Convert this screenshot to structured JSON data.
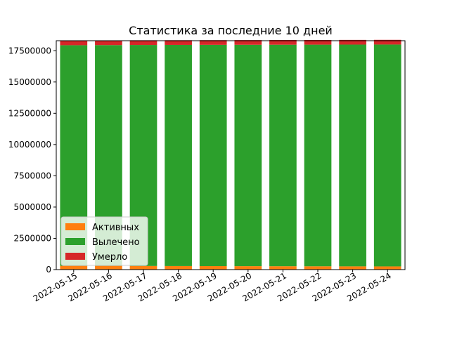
{
  "chart_data": {
    "type": "bar",
    "stacked": true,
    "title": "Статистика за последние 10 дней",
    "xlabel": "",
    "ylabel": "",
    "ylim": [
      0,
      18300000
    ],
    "yticks": [
      0,
      2500000,
      5000000,
      7500000,
      10000000,
      12500000,
      15000000,
      17500000
    ],
    "ytick_labels": [
      "0",
      "2500000",
      "5000000",
      "7500000",
      "10000000",
      "12500000",
      "15000000",
      "17500000"
    ],
    "categories": [
      "2022-05-15",
      "2022-05-16",
      "2022-05-17",
      "2022-05-18",
      "2022-05-19",
      "2022-05-20",
      "2022-05-21",
      "2022-05-22",
      "2022-05-23",
      "2022-05-24"
    ],
    "series": [
      {
        "name": "Активных",
        "color": "#ff7f0e",
        "values": [
          300000,
          300000,
          290000,
          285000,
          280000,
          275000,
          270000,
          265000,
          260000,
          255000
        ]
      },
      {
        "name": "Вылечено",
        "color": "#2ca02c",
        "values": [
          17640000,
          17650000,
          17670000,
          17680000,
          17690000,
          17700000,
          17710000,
          17720000,
          17730000,
          17740000
        ]
      },
      {
        "name": "Умерло",
        "color": "#d62728",
        "values": [
          375000,
          375000,
          375000,
          375000,
          375000,
          375000,
          375000,
          375000,
          375000,
          375000
        ]
      }
    ],
    "legend": "lower-left",
    "grid": false
  }
}
